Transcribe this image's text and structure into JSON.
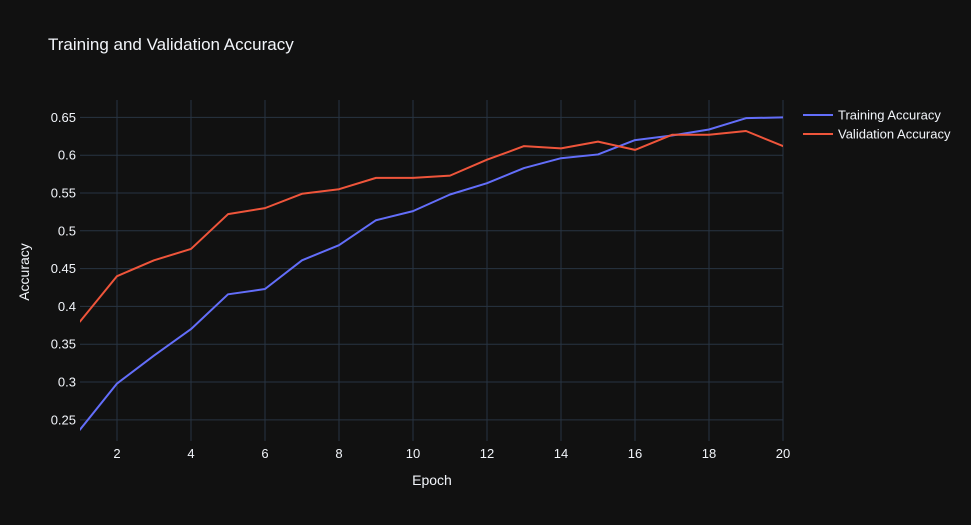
{
  "chart_data": {
    "type": "line",
    "title": "Training and Validation Accuracy",
    "xlabel": "Epoch",
    "ylabel": "Accuracy",
    "xlim": [
      1,
      20
    ],
    "ylim": [
      0.222,
      0.673
    ],
    "xticks": [
      2,
      4,
      6,
      8,
      10,
      12,
      14,
      16,
      18,
      20
    ],
    "yticks": [
      0.25,
      0.3,
      0.35,
      0.4,
      0.45,
      0.5,
      0.55,
      0.6,
      0.65
    ],
    "ytick_labels": [
      "0.25",
      "0.3",
      "0.35",
      "0.4",
      "0.45",
      "0.5",
      "0.55",
      "0.6",
      "0.65"
    ],
    "grid": true,
    "legend_position": "top-right",
    "x": [
      1,
      2,
      3,
      4,
      5,
      6,
      7,
      8,
      9,
      10,
      11,
      12,
      13,
      14,
      15,
      16,
      17,
      18,
      19,
      20
    ],
    "series": [
      {
        "name": "Training Accuracy",
        "color": "#636efa",
        "values": [
          0.237,
          0.298,
          0.335,
          0.37,
          0.416,
          0.423,
          0.461,
          0.481,
          0.514,
          0.526,
          0.548,
          0.563,
          0.583,
          0.596,
          0.601,
          0.62,
          0.626,
          0.634,
          0.649,
          0.65
        ]
      },
      {
        "name": "Validation Accuracy",
        "color": "#ef553b",
        "values": [
          0.38,
          0.44,
          0.461,
          0.476,
          0.522,
          0.53,
          0.549,
          0.555,
          0.57,
          0.57,
          0.573,
          0.594,
          0.612,
          0.609,
          0.618,
          0.607,
          0.627,
          0.627,
          0.632,
          0.612
        ]
      }
    ]
  },
  "colors": {
    "background": "#111111",
    "grid": "#283442",
    "text": "#f2f5fa"
  }
}
